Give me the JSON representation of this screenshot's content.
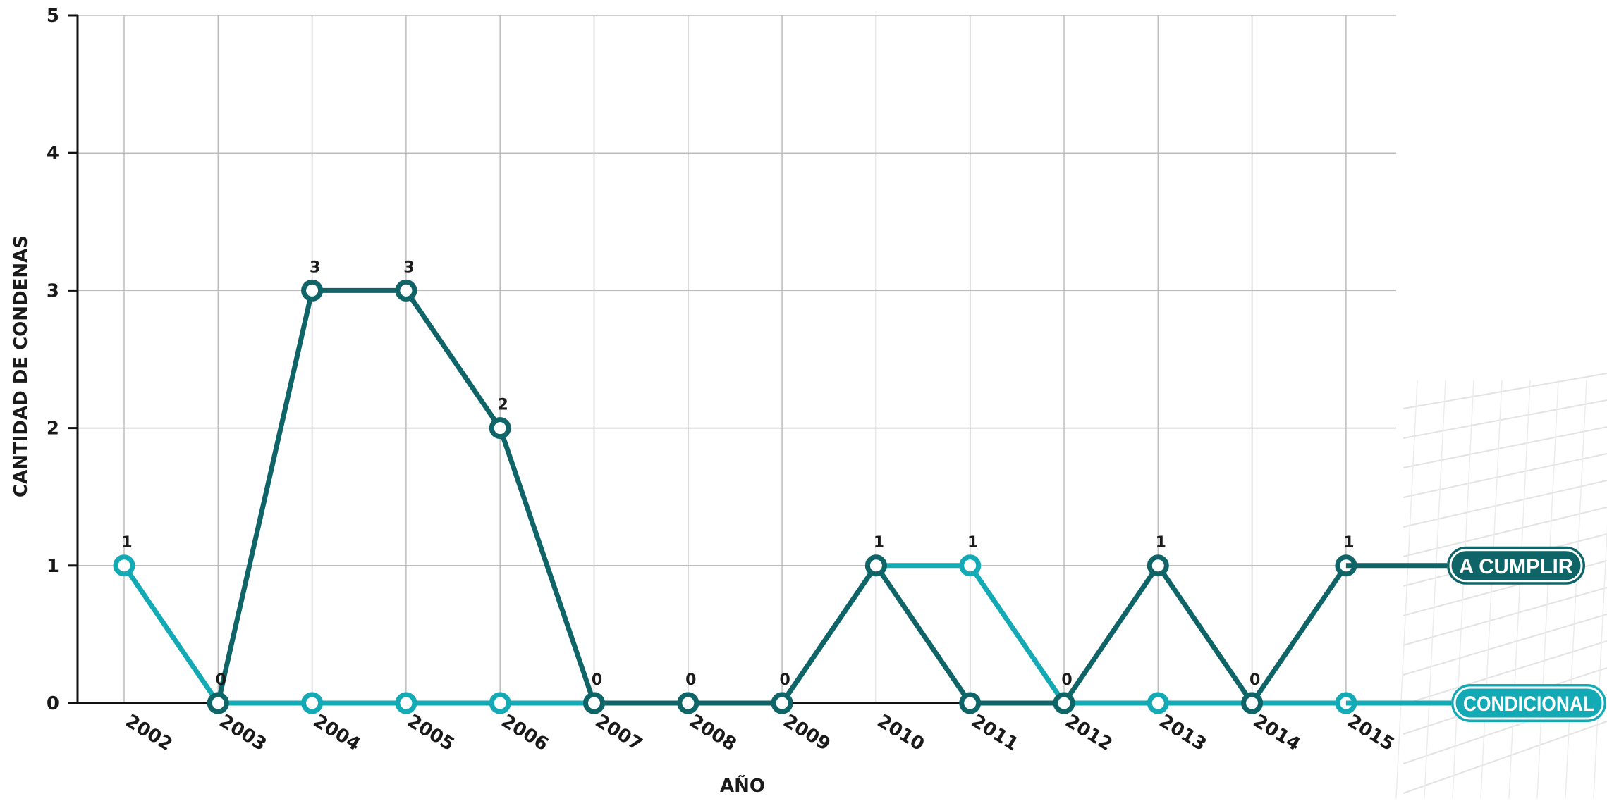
{
  "chart_data": {
    "type": "line",
    "xlabel": "AÑO",
    "ylabel": "CANTIDAD DE CONDENAS",
    "ylim": [
      0,
      5
    ],
    "y_ticks": [
      "0",
      "1",
      "2",
      "3",
      "4",
      "5"
    ],
    "categories": [
      "2002",
      "2003",
      "2004",
      "2005",
      "2006",
      "2007",
      "2008",
      "2009",
      "2010",
      "2011",
      "2012",
      "2013",
      "2014",
      "2015"
    ],
    "grid": true,
    "legend_placement": "right",
    "series": [
      {
        "name": "A CUMPLIR",
        "color": "#0f6468",
        "values": [
          null,
          0,
          3,
          3,
          2,
          0,
          0,
          0,
          1,
          0,
          0,
          1,
          0,
          1
        ]
      },
      {
        "name": "CONDICIONAL",
        "color": "#13aab5",
        "values": [
          1,
          0,
          0,
          0,
          0,
          0,
          0,
          0,
          1,
          1,
          0,
          0,
          0,
          0
        ]
      }
    ],
    "data_labels": [
      "1",
      "0",
      "3",
      "3",
      "2",
      "0",
      "0",
      "0",
      "1",
      "1",
      "0",
      "1",
      "0",
      "1"
    ]
  }
}
